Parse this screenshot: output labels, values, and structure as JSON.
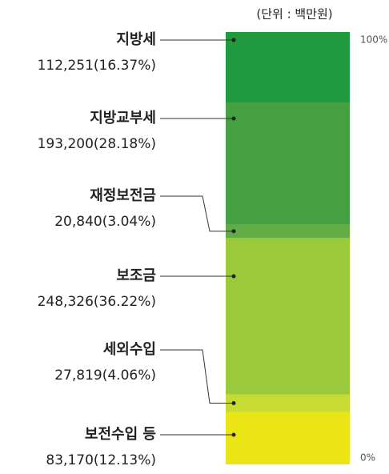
{
  "chart_data": {
    "type": "stacked_bar",
    "subtitle": "(단위 : 백만원)",
    "ylim": [
      0,
      100
    ],
    "yticks": [
      {
        "value": 0,
        "label": "0%"
      },
      {
        "value": 100,
        "label": "100%"
      }
    ],
    "series": [
      {
        "name": "지방세",
        "color": "#1f9a3f",
        "values": [
          16.37
        ],
        "value_labels": [
          "112,251(16.37%)"
        ]
      },
      {
        "name": "지방교부세",
        "color": "#44a040",
        "values": [
          28.18
        ],
        "value_labels": [
          "193,200(28.18%)"
        ]
      },
      {
        "name": "재정보전금",
        "color": "#63ab45",
        "values": [
          3.04
        ],
        "value_labels": [
          "20,840(3.04%)"
        ]
      },
      {
        "name": "보조금",
        "color": "#9bc93c",
        "values": [
          36.22
        ],
        "value_labels": [
          "248,326(36.22%)"
        ]
      },
      {
        "name": "세외수입",
        "color": "#c6dc35",
        "values": [
          4.06
        ],
        "value_labels": [
          "27,819(4.06%)"
        ]
      },
      {
        "name": "보전수입 등",
        "color": "#ece516",
        "values": [
          12.13
        ],
        "value_labels": [
          "83,170(12.13%)"
        ]
      }
    ]
  }
}
